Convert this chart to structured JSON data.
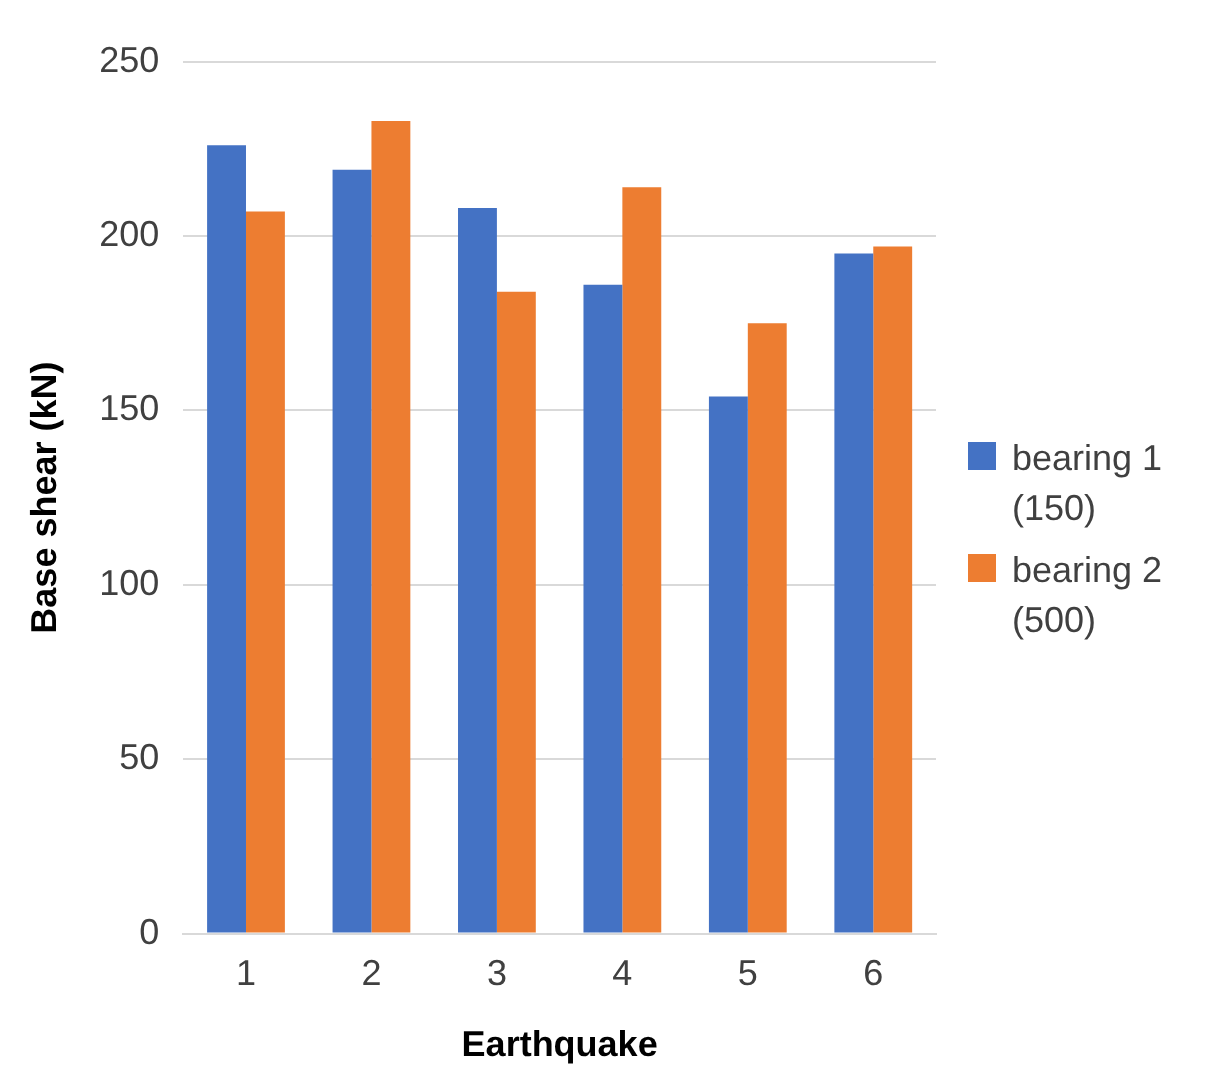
{
  "chart_data": {
    "type": "bar",
    "xlabel": "Earthquake",
    "ylabel": "Base shear (kN)",
    "categories": [
      "1",
      "2",
      "3",
      "4",
      "5",
      "6"
    ],
    "series": [
      {
        "name": "bearing 1 (150)",
        "color": "#4472c4",
        "values": [
          226,
          219,
          208,
          186,
          154,
          195
        ]
      },
      {
        "name": "bearing 2 (500)",
        "color": "#ed7d31",
        "values": [
          207,
          233,
          184,
          214,
          175,
          197
        ]
      }
    ],
    "ylim": [
      0,
      250
    ],
    "yticks": [
      0,
      50,
      100,
      150,
      200,
      250
    ],
    "grid": "y",
    "legend": "right"
  }
}
